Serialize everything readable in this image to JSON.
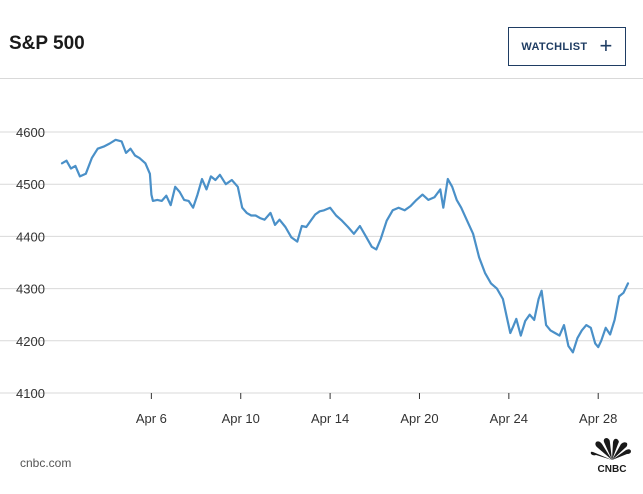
{
  "header": {
    "title": "S&P 500",
    "watchlist_label": "WATCHLIST",
    "watchlist_icon": "plus-icon"
  },
  "footer": {
    "source": "cnbc.com",
    "logo_text": "CNBC",
    "logo_icon": "cnbc-peacock-icon"
  },
  "colors": {
    "line": "#4a90c8",
    "grid": "#d9d9d9",
    "accent": "#1f3d63"
  },
  "chart_data": {
    "type": "line",
    "title": "S&P 500",
    "xlabel": "",
    "ylabel": "",
    "ylim": [
      4100,
      4600
    ],
    "yticks": [
      4100,
      4200,
      4300,
      4400,
      4500,
      4600
    ],
    "xlim": [
      0,
      19
    ],
    "xticks": [
      {
        "pos": 3,
        "label": "Apr 6"
      },
      {
        "pos": 6,
        "label": "Apr 10"
      },
      {
        "pos": 9,
        "label": "Apr 14"
      },
      {
        "pos": 12,
        "label": "Apr 20"
      },
      {
        "pos": 15,
        "label": "Apr 24"
      },
      {
        "pos": 18,
        "label": "Apr 28"
      }
    ],
    "grid": true,
    "series": [
      {
        "name": "",
        "x": [
          0,
          0.15,
          0.3,
          0.45,
          0.6,
          0.8,
          1.0,
          1.2,
          1.4,
          1.6,
          1.8,
          2.0,
          2.15,
          2.3,
          2.45,
          2.6,
          2.8,
          2.95,
          3.0,
          3.05,
          3.2,
          3.35,
          3.5,
          3.65,
          3.8,
          3.95,
          4.1,
          4.25,
          4.4,
          4.55,
          4.7,
          4.85,
          5.0,
          5.15,
          5.3,
          5.5,
          5.7,
          5.9,
          6.05,
          6.2,
          6.35,
          6.5,
          6.65,
          6.8,
          7.0,
          7.15,
          7.3,
          7.5,
          7.7,
          7.9,
          8.05,
          8.2,
          8.35,
          8.5,
          8.65,
          8.8,
          9.0,
          9.2,
          9.4,
          9.6,
          9.8,
          10.0,
          10.2,
          10.4,
          10.55,
          10.7,
          10.9,
          11.1,
          11.3,
          11.5,
          11.7,
          11.9,
          12.1,
          12.3,
          12.5,
          12.7,
          12.8,
          12.95,
          13.1,
          13.25,
          13.4,
          13.6,
          13.8,
          14.0,
          14.2,
          14.4,
          14.6,
          14.8,
          14.95,
          15.05,
          15.15,
          15.25,
          15.4,
          15.55,
          15.7,
          15.85,
          16.0,
          16.1,
          16.25,
          16.4,
          16.55,
          16.7,
          16.85,
          17.0,
          17.15,
          17.3,
          17.45,
          17.6,
          17.75,
          17.9,
          18.0,
          18.1,
          18.25,
          18.4,
          18.55,
          18.7,
          18.85,
          19.0
        ],
        "values": [
          4540,
          4545,
          4530,
          4535,
          4515,
          4520,
          4550,
          4568,
          4572,
          4578,
          4585,
          4582,
          4560,
          4568,
          4555,
          4550,
          4540,
          4520,
          4480,
          4468,
          4470,
          4468,
          4478,
          4460,
          4495,
          4485,
          4470,
          4468,
          4455,
          4480,
          4510,
          4490,
          4515,
          4508,
          4518,
          4500,
          4508,
          4495,
          4455,
          4445,
          4440,
          4440,
          4435,
          4432,
          4445,
          4422,
          4432,
          4418,
          4398,
          4390,
          4420,
          4418,
          4430,
          4442,
          4448,
          4450,
          4455,
          4440,
          4430,
          4418,
          4405,
          4420,
          4400,
          4380,
          4375,
          4395,
          4430,
          4450,
          4455,
          4450,
          4458,
          4470,
          4480,
          4470,
          4475,
          4490,
          4455,
          4510,
          4495,
          4470,
          4455,
          4430,
          4405,
          4360,
          4330,
          4310,
          4300,
          4280,
          4240,
          4215,
          4228,
          4242,
          4210,
          4238,
          4250,
          4240,
          4280,
          4296,
          4230,
          4220,
          4215,
          4210,
          4230,
          4190,
          4178,
          4205,
          4220,
          4230,
          4225,
          4195,
          4188,
          4200,
          4225,
          4212,
          4240,
          4285,
          4292,
          4310
        ]
      }
    ]
  }
}
